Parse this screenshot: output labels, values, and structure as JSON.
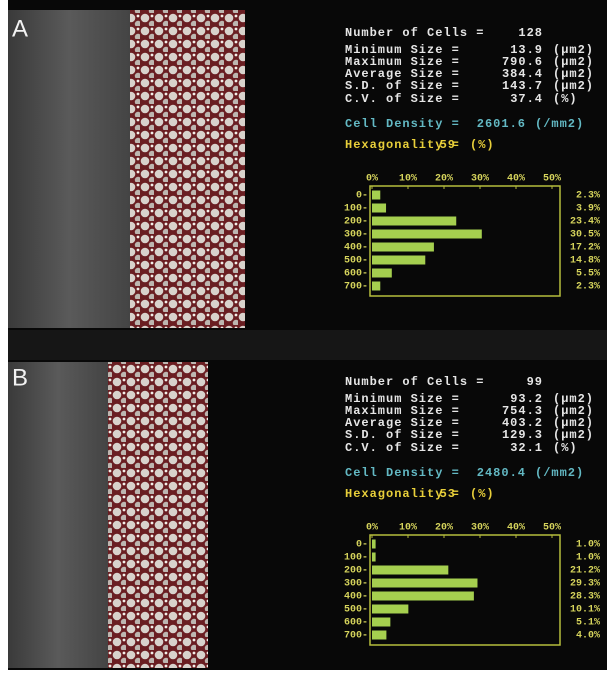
{
  "panels": [
    {
      "label": "A",
      "stats": [
        {
          "label": "Number of Cells =",
          "value": 128
        },
        {
          "label": "Minimum Size =",
          "value": 13.9,
          "unit": "(µm2)"
        },
        {
          "label": "Maximum Size =",
          "value": 790.6,
          "unit": "(µm2)"
        },
        {
          "label": "Average Size =",
          "value": 384.4,
          "unit": "(µm2)"
        },
        {
          "label": "S.D. of Size =",
          "value": 143.7,
          "unit": "(µm2)"
        },
        {
          "label": "C.V. of Size =",
          "value": 37.4,
          "unit": "(%)"
        }
      ],
      "density": {
        "label": "Cell Density =",
        "value": 2601.6,
        "unit": "(/mm2)"
      },
      "hexagonality": {
        "label": "Hexagonality =",
        "value": 59,
        "unit": "(%)"
      },
      "histogram": {
        "categories": [
          "0-",
          "100-",
          "200-",
          "300-",
          "400-",
          "500-",
          "600-",
          "700-"
        ],
        "values": [
          2.3,
          3.9,
          23.4,
          30.5,
          17.2,
          14.8,
          5.5,
          2.3
        ],
        "value_labels": [
          "2.3%",
          "3.9%",
          "23.4%",
          "30.5%",
          "17.2%",
          "14.8%",
          "5.5%",
          "2.3%"
        ],
        "xlim": [
          0,
          50
        ],
        "xticks": [
          {
            "value": 0,
            "label": "0%"
          },
          {
            "value": 10,
            "label": "10%"
          },
          {
            "value": 20,
            "label": "20%"
          },
          {
            "value": 30,
            "label": "30%"
          },
          {
            "value": 40,
            "label": "40%"
          },
          {
            "value": 50,
            "label": "50%"
          }
        ]
      }
    },
    {
      "label": "B",
      "stats": [
        {
          "label": "Number of Cells =",
          "value": 99
        },
        {
          "label": "Minimum Size =",
          "value": 93.2,
          "unit": "(µm2)"
        },
        {
          "label": "Maximum Size =",
          "value": 754.3,
          "unit": "(µm2)"
        },
        {
          "label": "Average Size =",
          "value": 403.2,
          "unit": "(µm2)"
        },
        {
          "label": "S.D. of Size =",
          "value": 129.3,
          "unit": "(µm2)"
        },
        {
          "label": "C.V. of Size =",
          "value": 32.1,
          "unit": "(%)"
        }
      ],
      "density": {
        "label": "Cell Density =",
        "value": 2480.4,
        "unit": "(/mm2)"
      },
      "hexagonality": {
        "label": "Hexagonality =",
        "value": 53,
        "unit": "(%)"
      },
      "histogram": {
        "categories": [
          "0-",
          "100-",
          "200-",
          "300-",
          "400-",
          "500-",
          "600-",
          "700-"
        ],
        "values": [
          1.0,
          1.0,
          21.2,
          29.3,
          28.3,
          10.1,
          5.1,
          4.0
        ],
        "value_labels": [
          "1.0%",
          "1.0%",
          "21.2%",
          "29.3%",
          "28.3%",
          "10.1%",
          "5.1%",
          "4.0%"
        ],
        "xlim": [
          0,
          50
        ],
        "xticks": [
          {
            "value": 0,
            "label": "0%"
          },
          {
            "value": 10,
            "label": "10%"
          },
          {
            "value": 20,
            "label": "20%"
          },
          {
            "value": 30,
            "label": "30%"
          },
          {
            "value": 40,
            "label": "40%"
          },
          {
            "value": 50,
            "label": "50%"
          }
        ]
      }
    }
  ]
}
